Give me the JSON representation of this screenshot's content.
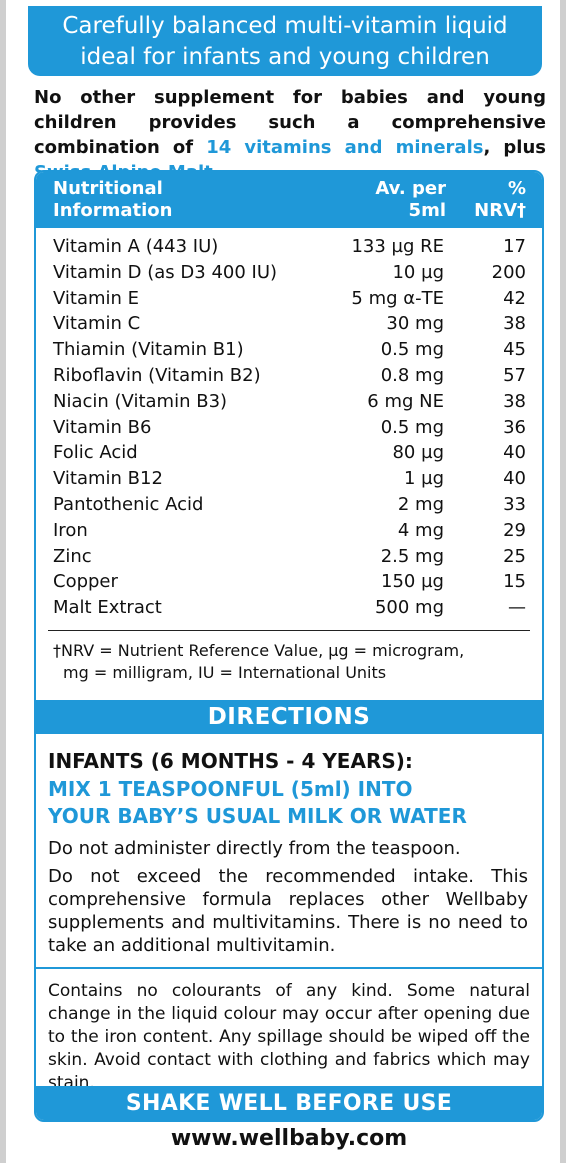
{
  "banner": {
    "line1": "Carefully balanced multi-vitamin liquid",
    "line2": "ideal for infants and young children"
  },
  "intro": {
    "text_before": "No other supplement for babies and young children provides such a comprehensive combination of ",
    "highlight1": "14 vitamins and minerals",
    "text_middle": ", plus ",
    "highlight2": "Swiss Alpine Malt",
    "text_end": "."
  },
  "table": {
    "header": {
      "col1_line1": "Nutritional",
      "col1_line2": "Information",
      "col2_line1": "Av. per",
      "col2_line2": "5ml",
      "col3_line1": "%",
      "col3_line2": "NRV†"
    },
    "rows": [
      {
        "name": "Vitamin A (443 IU)",
        "amount": "133 µg RE",
        "nrv": "17"
      },
      {
        "name": "Vitamin D (as D3 400 IU)",
        "amount": "10 µg",
        "nrv": "200"
      },
      {
        "name": "Vitamin E",
        "amount": "5 mg α-TE",
        "nrv": "42"
      },
      {
        "name": "Vitamin C",
        "amount": "30 mg",
        "nrv": "38"
      },
      {
        "name": "Thiamin (Vitamin B1)",
        "amount": "0.5 mg",
        "nrv": "45"
      },
      {
        "name": "Riboflavin (Vitamin B2)",
        "amount": "0.8 mg",
        "nrv": "57"
      },
      {
        "name": "Niacin (Vitamin B3)",
        "amount": "6 mg NE",
        "nrv": "38"
      },
      {
        "name": "Vitamin B6",
        "amount": "0.5 mg",
        "nrv": "36"
      },
      {
        "name": "Folic Acid",
        "amount": "80 µg",
        "nrv": "40"
      },
      {
        "name": "Vitamin B12",
        "amount": "1 µg",
        "nrv": "40"
      },
      {
        "name": "Pantothenic Acid",
        "amount": "2 mg",
        "nrv": "33"
      },
      {
        "name": "Iron",
        "amount": "4 mg",
        "nrv": "29"
      },
      {
        "name": "Zinc",
        "amount": "2.5 mg",
        "nrv": "25"
      },
      {
        "name": "Copper",
        "amount": "150 µg",
        "nrv": "15"
      },
      {
        "name": "Malt Extract",
        "amount": "500 mg",
        "nrv": "—"
      }
    ],
    "footnote_line1": "†NRV = Nutrient Reference Value, µg = microgram,",
    "footnote_line2": "mg = milligram, IU = International Units"
  },
  "directions": {
    "heading": "DIRECTIONS",
    "infants": "INFANTS (6 MONTHS - 4 YEARS):",
    "mix_line1": "MIX 1 TEASPOONFUL (5ml) INTO",
    "mix_line2": "YOUR BABY’S USUAL MILK OR WATER",
    "para1": "Do not administer directly from the teaspoon.",
    "para2": "Do not exceed the recommended intake. This comprehensive formula replaces other Wellbaby supplements and multivitamins. There is no need to take an additional multivitamin.",
    "para3": "Contains no colourants of any kind. Some natural change in the liquid colour may occur after opening due to the iron content. Any spillage should be wiped off the skin. Avoid contact with clothing and fabrics which may stain.",
    "shake": "SHAKE WELL BEFORE USE"
  },
  "website": "www.wellbaby.com",
  "colors": {
    "accent": "#1f98d8"
  }
}
